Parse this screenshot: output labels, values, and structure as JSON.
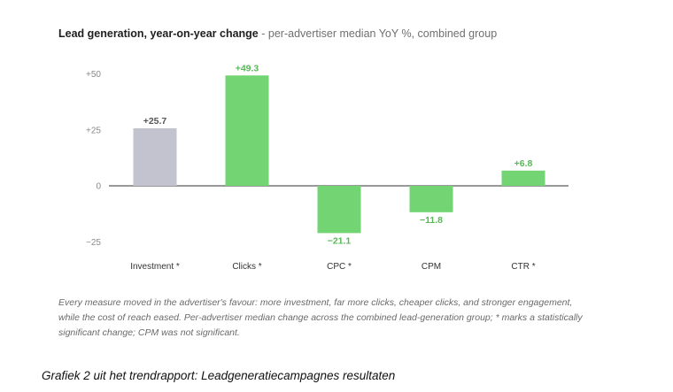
{
  "chart_data": {
    "type": "bar",
    "title": "Lead generation, year-on-year change",
    "subtitle": "per-advertiser median YoY %, combined group",
    "categories": [
      "Investment *",
      "Clicks *",
      "CPC *",
      "CPM",
      "CTR *"
    ],
    "values": [
      25.7,
      49.3,
      -21.1,
      -11.8,
      6.8
    ],
    "data_labels": [
      "+25.7",
      "+49.3",
      "−21.1",
      "−11.8",
      "+6.8"
    ],
    "y_ticks": [
      50,
      25,
      0,
      -25
    ],
    "y_tick_labels": [
      "+50",
      "+25",
      "0",
      "−25"
    ],
    "ylim": [
      -25,
      50
    ],
    "xlabel": "",
    "ylabel": "",
    "grid": false,
    "bar_colors": [
      "#c3c3cf",
      "#72d472",
      "#72d472",
      "#72d472",
      "#72d472"
    ],
    "label_colors": [
      "#555555",
      "#58b858",
      "#58b858",
      "#58b858",
      "#58b858"
    ]
  },
  "caption": "Every measure moved in the advertiser's favour: more investment, far more clicks, cheaper clicks, and stronger engagement, while the cost of reach eased. Per-advertiser median change across the combined lead-generation group; * marks a statistically significant change; CPM was not significant.",
  "footer": "Grafiek 2 uit het trendrapport: Leadgeneratiecampagnes resultaten"
}
